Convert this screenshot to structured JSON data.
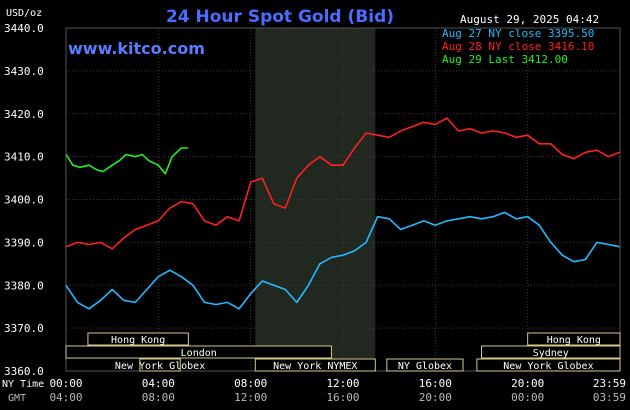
{
  "chart_data": {
    "type": "line",
    "title": "24 Hour Spot Gold (Bid)",
    "date_label": "August 29, 2025 04:42",
    "site": "www.kitco.com",
    "ylabel": "USD/oz",
    "ylim": [
      3360,
      3440
    ],
    "yticks": [
      "3440.0",
      "3430.0",
      "3420.0",
      "3410.0",
      "3400.0",
      "3390.0",
      "3380.0",
      "3370.0",
      "3360.0"
    ],
    "grid": true,
    "legend_position": "top-right",
    "xaxis": {
      "rows": [
        {
          "label": "NY Time",
          "ticks": [
            "00:00",
            "04:00",
            "08:00",
            "12:00",
            "16:00",
            "20:00",
            "23:59"
          ]
        },
        {
          "label": "GMT",
          "ticks": [
            "04:00",
            "08:00",
            "12:00",
            "16:00",
            "20:00",
            "00:00",
            "03:59"
          ]
        }
      ]
    },
    "shaded_session": {
      "start_hour": 8.2,
      "end_hour": 13.4
    },
    "markets": {
      "hong_kong_1": {
        "label": "Hong Kong",
        "start": 0.95,
        "end": 5.3
      },
      "london": {
        "label": "London",
        "start": 0.0,
        "end": 11.5
      },
      "new_york_globex_1": {
        "label": "New York Globex",
        "start": 3.2,
        "end": 4.95
      },
      "new_york_nymex": {
        "label": "New York NYMEX",
        "start": 8.2,
        "end": 13.4
      },
      "ny_globex": {
        "label": "NY Globex",
        "start": 13.9,
        "end": 17.2
      },
      "hong_kong_2": {
        "label": "Hong Kong",
        "start": 20.0,
        "end": 24.0
      },
      "sydney": {
        "label": "Sydney",
        "start": 18.0,
        "end": 24.0
      },
      "new_york_globex_2": {
        "label": "New York Globex",
        "start": 17.8,
        "end": 24.0
      }
    },
    "series": [
      {
        "name": "Aug 27 NY close 3395.50",
        "color": "#22bbff",
        "x": [
          0,
          0.5,
          1,
          1.5,
          2,
          2.5,
          3,
          3.5,
          4,
          4.5,
          5,
          5.5,
          6,
          6.5,
          7,
          7.5,
          8,
          8.5,
          9,
          9.5,
          10,
          10.5,
          11,
          11.5,
          12,
          12.5,
          13,
          13.5,
          14,
          14.5,
          15,
          15.5,
          16,
          16.5,
          17,
          17.5,
          18,
          18.5,
          19,
          19.5,
          20,
          20.5,
          21,
          21.5,
          22,
          22.5,
          23,
          23.5,
          23.98
        ],
        "values": [
          3380,
          3376,
          3374.5,
          3376.5,
          3379,
          3376.5,
          3376,
          3379,
          3382,
          3383.5,
          3382,
          3380,
          3376,
          3375.5,
          3376,
          3374.5,
          3378,
          3381,
          3380,
          3379,
          3376,
          3380,
          3385,
          3386.5,
          3387,
          3388,
          3390,
          3396,
          3395.5,
          3393,
          3394,
          3395,
          3394,
          3395,
          3395.5,
          3396,
          3395.5,
          3396,
          3397,
          3395.5,
          3396,
          3394,
          3390,
          3387,
          3385.5,
          3386,
          3390,
          3389.5,
          3389
        ]
      },
      {
        "name": "Aug 28 NY close 3416.10",
        "color": "#ff2020",
        "x": [
          0,
          0.5,
          1,
          1.5,
          2,
          2.5,
          3,
          3.5,
          4,
          4.5,
          5,
          5.5,
          6,
          6.5,
          7,
          7.5,
          8,
          8.5,
          9,
          9.5,
          10,
          10.5,
          11,
          11.5,
          12,
          12.5,
          13,
          13.5,
          14,
          14.5,
          15,
          15.5,
          16,
          16.5,
          17,
          17.5,
          18,
          18.5,
          19,
          19.5,
          20,
          20.5,
          21,
          21.5,
          22,
          22.5,
          23,
          23.5,
          23.98
        ],
        "values": [
          3389,
          3390,
          3389.5,
          3390,
          3388.5,
          3391,
          3393,
          3394,
          3395,
          3398,
          3399.5,
          3399,
          3395,
          3394,
          3396,
          3395,
          3404,
          3405,
          3399,
          3398,
          3405,
          3408,
          3410,
          3408,
          3408,
          3412,
          3415.5,
          3415,
          3414.5,
          3416,
          3417,
          3418,
          3417.5,
          3419,
          3416,
          3416.5,
          3415.5,
          3416,
          3415.5,
          3414.5,
          3415,
          3413,
          3413,
          3410.5,
          3409.5,
          3411,
          3411.5,
          3410,
          3411
        ]
      },
      {
        "name": "Aug 29 Last 3412.00",
        "color": "#22ee22",
        "x": [
          0,
          0.3,
          0.6,
          1,
          1.3,
          1.6,
          2,
          2.3,
          2.6,
          3,
          3.3,
          3.6,
          4,
          4.3,
          4.6,
          5,
          5.3
        ],
        "values": [
          3410.5,
          3408,
          3407.5,
          3408,
          3407,
          3406.5,
          3408,
          3409,
          3410.5,
          3410,
          3410.5,
          3409,
          3408,
          3406,
          3410,
          3412,
          3412
        ]
      }
    ]
  }
}
